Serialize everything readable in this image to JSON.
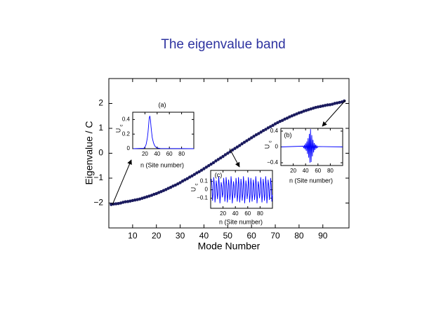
{
  "chart_data": [
    {
      "type": "line",
      "title": "The eigenvalue band",
      "xlabel": "Mode Number",
      "ylabel": "Eigenvalue / C",
      "color": "#1b1b5e",
      "markers": true,
      "x": [
        1,
        2,
        3,
        4,
        5,
        6,
        7,
        8,
        9,
        10,
        11,
        12,
        13,
        14,
        15,
        16,
        17,
        18,
        19,
        20,
        21,
        22,
        23,
        24,
        25,
        26,
        27,
        28,
        29,
        30,
        31,
        32,
        33,
        34,
        35,
        36,
        37,
        38,
        39,
        40,
        41,
        42,
        43,
        44,
        45,
        46,
        47,
        48,
        49,
        50,
        51,
        52,
        53,
        54,
        55,
        56,
        57,
        58,
        59,
        60,
        61,
        62,
        63,
        64,
        65,
        66,
        67,
        68,
        69,
        70,
        71,
        72,
        73,
        74,
        75,
        76,
        77,
        78,
        79,
        80,
        81,
        82,
        83,
        84,
        85,
        86,
        87,
        88,
        89,
        90,
        91,
        92,
        93,
        94,
        95,
        96,
        97,
        98,
        99
      ],
      "values": [
        -2.06,
        -2.04,
        -2.03,
        -2.02,
        -2.0,
        -1.97,
        -1.95,
        -1.94,
        -1.92,
        -1.9,
        -1.88,
        -1.86,
        -1.84,
        -1.81,
        -1.78,
        -1.75,
        -1.72,
        -1.69,
        -1.65,
        -1.62,
        -1.58,
        -1.54,
        -1.5,
        -1.46,
        -1.41,
        -1.37,
        -1.32,
        -1.28,
        -1.23,
        -1.18,
        -1.12,
        -1.07,
        -1.02,
        -0.96,
        -0.91,
        -0.85,
        -0.79,
        -0.74,
        -0.68,
        -0.62,
        -0.56,
        -0.5,
        -0.44,
        -0.38,
        -0.31,
        -0.25,
        -0.19,
        -0.13,
        -0.06,
        0.0,
        0.06,
        0.13,
        0.19,
        0.25,
        0.31,
        0.38,
        0.44,
        0.5,
        0.56,
        0.62,
        0.68,
        0.74,
        0.79,
        0.85,
        0.91,
        0.96,
        1.02,
        1.07,
        1.12,
        1.18,
        1.23,
        1.28,
        1.32,
        1.37,
        1.41,
        1.46,
        1.5,
        1.54,
        1.58,
        1.62,
        1.65,
        1.69,
        1.72,
        1.75,
        1.78,
        1.81,
        1.84,
        1.86,
        1.88,
        1.9,
        1.92,
        1.94,
        1.95,
        1.97,
        2.0,
        2.02,
        2.04,
        2.06,
        2.1
      ],
      "xlim": [
        0,
        101
      ],
      "ylim": [
        -3,
        3
      ],
      "xticks": [
        10,
        20,
        30,
        40,
        50,
        60,
        70,
        80,
        90
      ],
      "yticks": [
        {
          "value": -2,
          "label": "−2"
        },
        {
          "value": -1,
          "label": "−1"
        },
        0,
        1,
        2
      ]
    },
    {
      "type": "line",
      "title": "(a)",
      "xlabel": "n (Site number)",
      "ylabel": "U",
      "ylabel_subscript": "c",
      "color": "#0000ff",
      "x": [
        1,
        18,
        20,
        22,
        24,
        25,
        26,
        27,
        28,
        29,
        30,
        31,
        32,
        34,
        36,
        38,
        40,
        45,
        100
      ],
      "values": [
        0,
        0.005,
        0.02,
        0.06,
        0.15,
        0.22,
        0.32,
        0.42,
        0.45,
        0.4,
        0.3,
        0.22,
        0.15,
        0.08,
        0.04,
        0.02,
        0.01,
        0.003,
        0
      ],
      "xlim": [
        0,
        100
      ],
      "ylim": [
        0,
        0.5
      ],
      "xticks": [
        20,
        40,
        60,
        80
      ],
      "yticks": [
        0,
        0.2,
        0.4
      ]
    },
    {
      "type": "line",
      "title": "(b)",
      "xlabel": "n (Site number)",
      "ylabel": "U",
      "ylabel_subscript": "c",
      "color": "#0000ff",
      "x": [
        1,
        36,
        37,
        38,
        39,
        40,
        41,
        42,
        43,
        44,
        45,
        46,
        47,
        48,
        49,
        50,
        51,
        52,
        53,
        54,
        55,
        56,
        57,
        58,
        59,
        60,
        100
      ],
      "values": [
        0,
        0.02,
        -0.03,
        0.05,
        -0.06,
        0.09,
        -0.1,
        0.14,
        -0.18,
        0.22,
        -0.27,
        0.33,
        -0.4,
        0.45,
        -0.38,
        0.3,
        -0.24,
        0.18,
        -0.14,
        0.1,
        -0.08,
        0.06,
        -0.04,
        0.03,
        -0.02,
        0.01,
        0
      ],
      "xlim": [
        0,
        100
      ],
      "ylim": [
        -0.47,
        0.47
      ],
      "xticks": [
        20,
        40,
        60,
        80
      ],
      "yticks": [
        {
          "value": -0.4,
          "label": "−0.4"
        },
        0,
        0.4
      ]
    },
    {
      "type": "line",
      "title": "(c)",
      "xlabel": "n (Site number)",
      "ylabel": "U",
      "ylabel_subscript": "c",
      "color": "#0000ff",
      "x": [
        1,
        2,
        3,
        4,
        5,
        6,
        7,
        8,
        9,
        10,
        11,
        12,
        13,
        14,
        15,
        16,
        17,
        18,
        19,
        20,
        21,
        22,
        23,
        24,
        25,
        26,
        27,
        28,
        29,
        30,
        31,
        32,
        33,
        34,
        35,
        36,
        37,
        38,
        39,
        40,
        41,
        42,
        43,
        44,
        45,
        46,
        47,
        48,
        49,
        50,
        51,
        52,
        53,
        54,
        55,
        56,
        57,
        58,
        59,
        60,
        61,
        62,
        63,
        64,
        65,
        66,
        67,
        68,
        69,
        70,
        71,
        72,
        73,
        74,
        75,
        76,
        77,
        78,
        79,
        80,
        81,
        82,
        83,
        84,
        85,
        86,
        87,
        88,
        89,
        90,
        91,
        92,
        93,
        94,
        95,
        96,
        97,
        98,
        99,
        100
      ],
      "values": [
        0.13,
        0.05,
        -0.13,
        -0.05,
        0.15,
        0.06,
        -0.15,
        -0.06,
        0.11,
        0.04,
        -0.11,
        -0.04,
        0.16,
        0.06,
        -0.16,
        -0.06,
        0.09,
        0.04,
        -0.09,
        -0.04,
        0.14,
        0.06,
        -0.14,
        -0.06,
        0.15,
        0.06,
        -0.15,
        -0.06,
        0.12,
        0.05,
        -0.12,
        -0.05,
        0.16,
        0.06,
        -0.16,
        -0.06,
        0.1,
        0.04,
        -0.1,
        -0.04,
        0.14,
        0.06,
        -0.14,
        -0.06,
        0.15,
        0.06,
        -0.15,
        -0.06,
        0.13,
        0.05,
        -0.13,
        -0.05,
        0.16,
        0.06,
        -0.16,
        -0.06,
        0.11,
        0.04,
        -0.11,
        -0.04,
        0.15,
        0.06,
        -0.15,
        -0.06,
        0.14,
        0.06,
        -0.14,
        -0.06,
        0.12,
        0.05,
        -0.12,
        -0.05,
        0.16,
        0.06,
        -0.16,
        -0.06,
        0.1,
        0.04,
        -0.1,
        -0.04,
        0.15,
        0.06,
        -0.15,
        -0.06,
        0.13,
        0.05,
        -0.13,
        -0.05,
        0.16,
        0.06,
        -0.16,
        -0.06,
        0.12,
        0.05,
        -0.12,
        -0.05,
        0.14,
        0.06,
        -0.14,
        -0.06
      ],
      "xlim": [
        0,
        100
      ],
      "ylim": [
        -0.22,
        0.23
      ],
      "xticks": [
        20,
        40,
        60,
        80
      ],
      "yticks": [
        {
          "value": -0.1,
          "label": "−0.1"
        },
        0,
        0.1
      ]
    }
  ]
}
